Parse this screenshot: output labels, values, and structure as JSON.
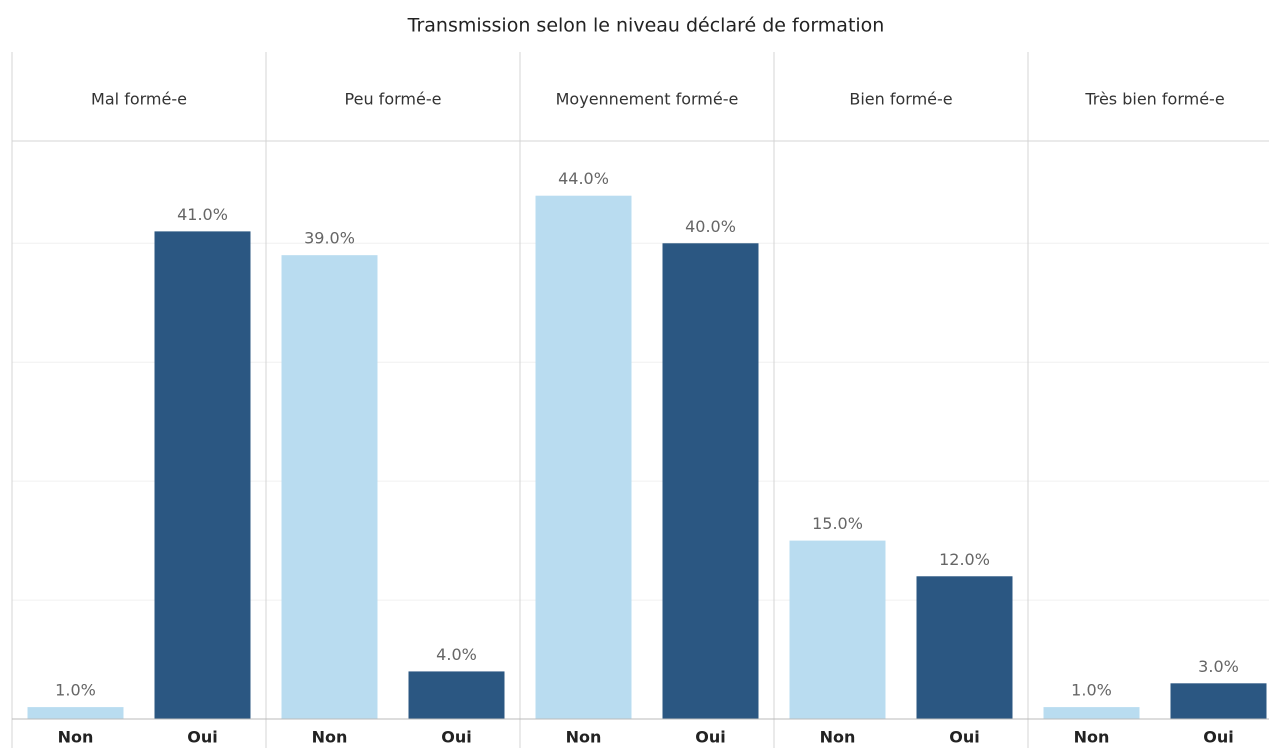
{
  "chart_data": {
    "type": "bar",
    "title": "Transmission selon le niveau déclaré de formation",
    "facets": [
      {
        "name": "Mal formé-e",
        "categories": [
          "Non",
          "Oui"
        ],
        "values": [
          1,
          41
        ],
        "value_labels": [
          "1.0%",
          "41.0%"
        ]
      },
      {
        "name": "Peu formé-e",
        "categories": [
          "Non",
          "Oui"
        ],
        "values": [
          39,
          4
        ],
        "value_labels": [
          "39.0%",
          "4.0%"
        ]
      },
      {
        "name": "Moyennement formé-e",
        "categories": [
          "Non",
          "Oui"
        ],
        "values": [
          44,
          40
        ],
        "value_labels": [
          "44.0%",
          "40.0%"
        ]
      },
      {
        "name": "Bien formé-e",
        "categories": [
          "Non",
          "Oui"
        ],
        "values": [
          15,
          12
        ],
        "value_labels": [
          "15.0%",
          "12.0%"
        ]
      },
      {
        "name": "Très bien formé-e",
        "categories": [
          "Non",
          "Oui"
        ],
        "values": [
          1,
          3
        ],
        "value_labels": [
          "1.0%",
          "3.0%"
        ]
      }
    ],
    "colors": [
      "#b9dcf0",
      "#2b5782"
    ],
    "ylim": [
      0,
      48.6
    ],
    "yticks": [
      10,
      20,
      30,
      40
    ],
    "grid": true
  }
}
